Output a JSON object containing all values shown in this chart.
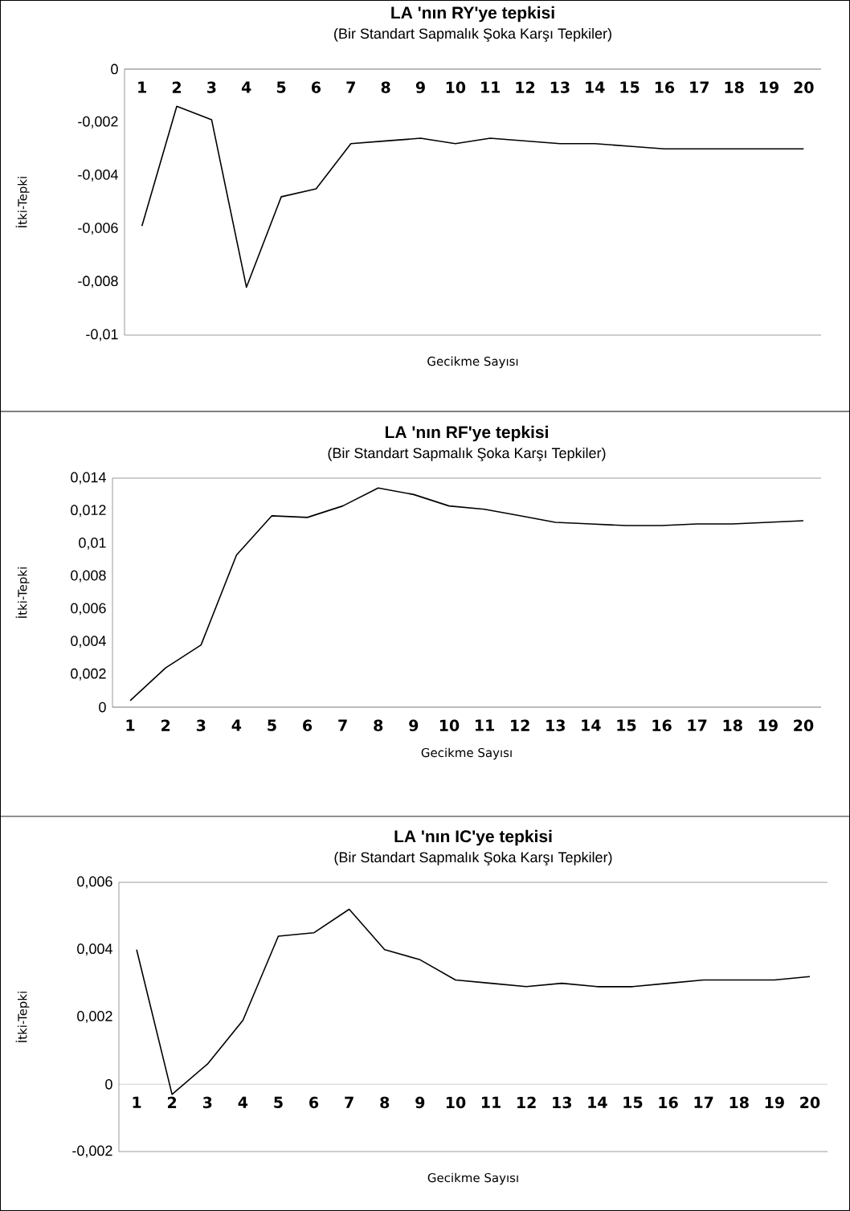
{
  "chart_data": [
    {
      "type": "line",
      "title": "LA 'nın RY'ye tepkisi",
      "subtitle": "(Bir Standart Sapmalık Şoka Karşı Tepkiler)",
      "xlabel": "Gecikme Sayısı",
      "ylabel": "İtki-Tepki",
      "categories": [
        "1",
        "2",
        "3",
        "4",
        "5",
        "6",
        "7",
        "8",
        "9",
        "10",
        "11",
        "12",
        "13",
        "14",
        "15",
        "16",
        "17",
        "18",
        "19",
        "20"
      ],
      "values": [
        -0.0059,
        -0.0014,
        -0.0019,
        -0.0082,
        -0.0048,
        -0.0045,
        -0.0028,
        -0.0027,
        -0.0026,
        -0.0028,
        -0.0026,
        -0.0027,
        -0.0028,
        -0.0028,
        -0.0029,
        -0.003,
        -0.003,
        -0.003,
        -0.003,
        -0.003
      ],
      "color": "#000000",
      "ylim": [
        -0.01,
        0
      ],
      "yticks": [
        {
          "value": -0.01,
          "label": "-0,01"
        },
        {
          "value": -0.008,
          "label": "-0,008"
        },
        {
          "value": -0.006,
          "label": "-0,006"
        },
        {
          "value": -0.004,
          "label": "-0,004"
        },
        {
          "value": -0.002,
          "label": "-0,002"
        },
        0
      ]
    },
    {
      "type": "line",
      "title": "LA 'nın RF'ye tepkisi",
      "subtitle": "(Bir Standart Sapmalık Şoka Karşı Tepkiler)",
      "xlabel": "Gecikme Sayısı",
      "ylabel": "İtki-Tepki",
      "categories": [
        "1",
        "2",
        "3",
        "4",
        "5",
        "6",
        "7",
        "8",
        "9",
        "10",
        "11",
        "12",
        "13",
        "14",
        "15",
        "16",
        "17",
        "18",
        "19",
        "20"
      ],
      "values": [
        0.0004,
        0.0024,
        0.0038,
        0.0093,
        0.0117,
        0.0116,
        0.0123,
        0.0134,
        0.013,
        0.0123,
        0.0121,
        0.0117,
        0.0113,
        0.0112,
        0.0111,
        0.0111,
        0.0112,
        0.0112,
        0.0113,
        0.0114
      ],
      "color": "#000000",
      "ylim": [
        0,
        0.014
      ],
      "yticks": [
        0,
        {
          "value": 0.002,
          "label": "0,002"
        },
        {
          "value": 0.004,
          "label": "0,004"
        },
        {
          "value": 0.006,
          "label": "0,006"
        },
        {
          "value": 0.008,
          "label": "0,008"
        },
        {
          "value": 0.01,
          "label": "0,01"
        },
        {
          "value": 0.012,
          "label": "0,012"
        },
        {
          "value": 0.014,
          "label": "0,014"
        }
      ]
    },
    {
      "type": "line",
      "title": "LA 'nın IC'ye tepkisi",
      "subtitle": "(Bir Standart Sapmalık Şoka Karşı Tepkiler)",
      "xlabel": "Gecikme Sayısı",
      "ylabel": "İtki-Tepki",
      "categories": [
        "1",
        "2",
        "3",
        "4",
        "5",
        "6",
        "7",
        "8",
        "9",
        "10",
        "11",
        "12",
        "13",
        "14",
        "15",
        "16",
        "17",
        "18",
        "19",
        "20"
      ],
      "values": [
        0.004,
        -0.0003,
        0.0006,
        0.0019,
        0.0044,
        0.0045,
        0.0052,
        0.004,
        0.0037,
        0.0031,
        0.003,
        0.0029,
        0.003,
        0.0029,
        0.0029,
        0.003,
        0.0031,
        0.0031,
        0.0031,
        0.0032
      ],
      "color": "#000000",
      "ylim": [
        -0.002,
        0.006
      ],
      "yticks": [
        {
          "value": -0.002,
          "label": "-0,002"
        },
        0,
        {
          "value": 0.002,
          "label": "0,002"
        },
        {
          "value": 0.004,
          "label": "0,004"
        },
        {
          "value": 0.006,
          "label": "0,006"
        }
      ]
    }
  ]
}
